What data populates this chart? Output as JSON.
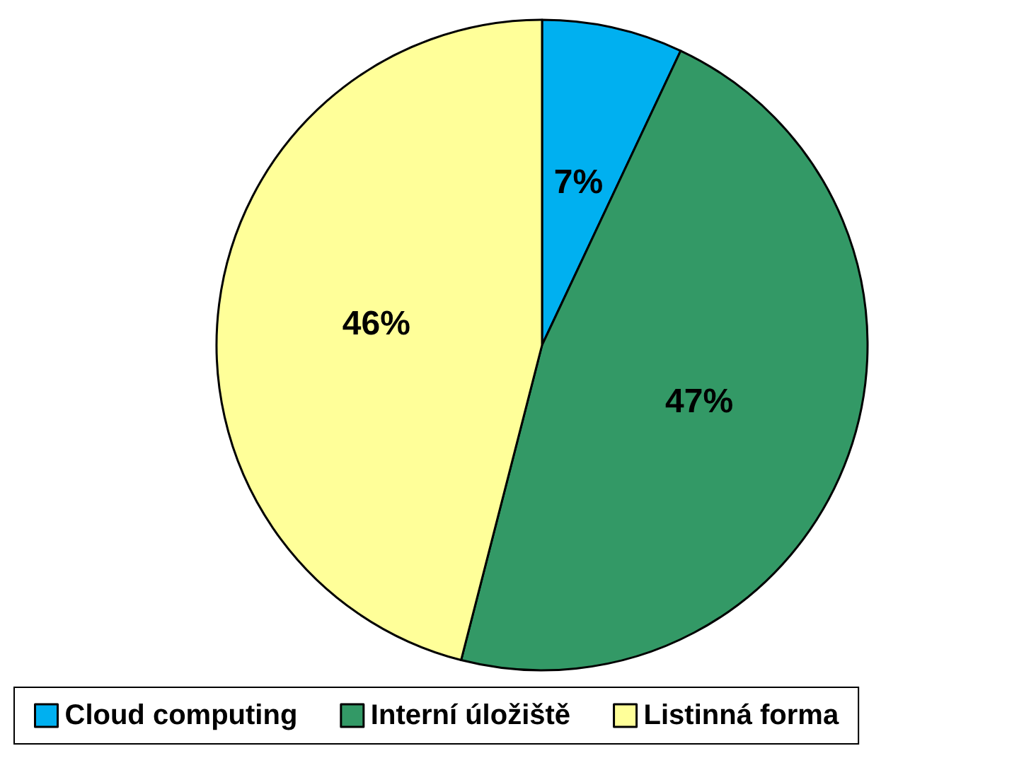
{
  "chart_data": {
    "type": "pie",
    "categories": [
      "Cloud computing",
      "Interní úložiště",
      "Listinná forma"
    ],
    "values": [
      7,
      47,
      46
    ],
    "colors": [
      "#00b0f0",
      "#339966",
      "#ffff99"
    ],
    "value_labels": [
      "7%",
      "47%",
      "46%"
    ],
    "legend": "bottom"
  }
}
